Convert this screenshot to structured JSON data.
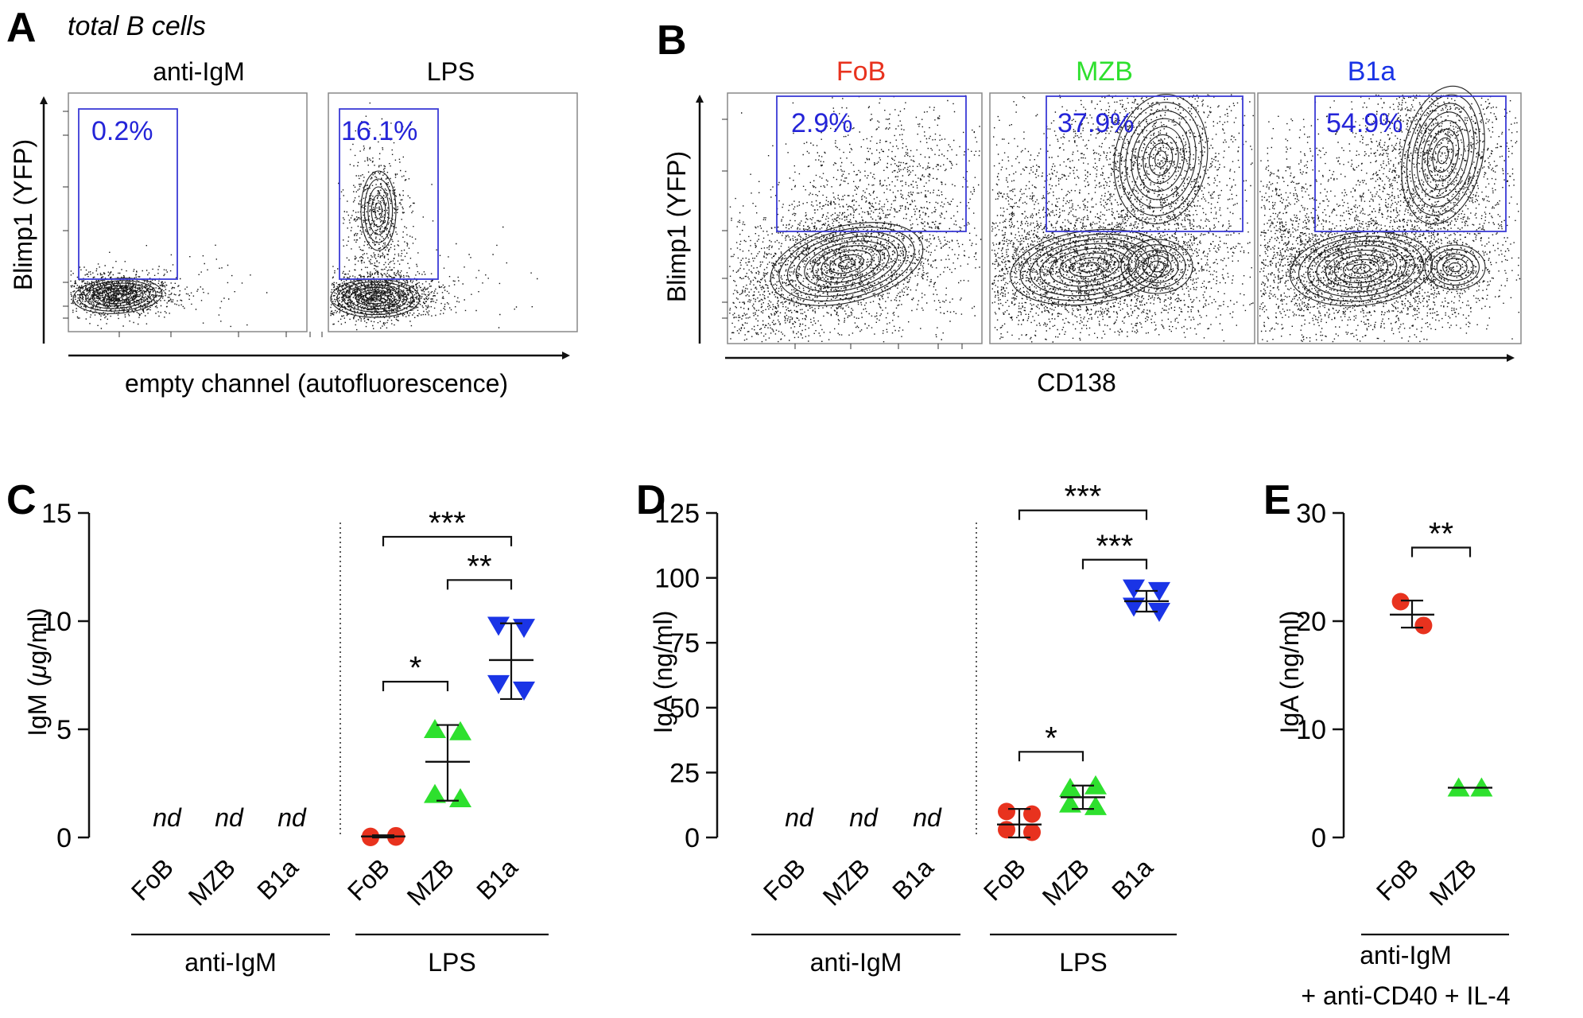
{
  "colors": {
    "fob": "#e8321e",
    "mzb": "#2ee02e",
    "b1a": "#1a34e6",
    "gate": "#3b3bd6",
    "gate_text": "#2424d8",
    "axis": "#111111"
  },
  "panel_a": {
    "letter": "A",
    "subtitle": "total B cells",
    "plots": [
      {
        "title": "anti-IgM",
        "gate_label": "0.2%"
      },
      {
        "title": "LPS",
        "gate_label": "16.1%"
      }
    ],
    "y_label": "Blimp1 (YFP)",
    "x_label": "empty channel (autofluorescence)"
  },
  "panel_b": {
    "letter": "B",
    "plots": [
      {
        "title": "FoB",
        "gate_label": "2.9%",
        "color": "#e8321e"
      },
      {
        "title": "MZB",
        "gate_label": "37.9%",
        "color": "#2ee02e"
      },
      {
        "title": "B1a",
        "gate_label": "54.9%",
        "color": "#1a34e6"
      }
    ],
    "y_label": "Blimp1 (YFP)",
    "x_label": "CD138"
  },
  "chart_data": [
    {
      "panel": "C",
      "type": "scatter",
      "ylabel_prefix": "IgM (",
      "ylabel_mu": "μ",
      "ylabel_suffix": "g/ml)",
      "ylim": [
        0,
        15
      ],
      "yticks": [
        0,
        5,
        10,
        15
      ],
      "categories": [
        "FoB",
        "MZB",
        "B1a",
        "FoB",
        "MZB",
        "B1a"
      ],
      "groups": [
        "anti-IgM",
        "LPS"
      ],
      "nd_label": "nd",
      "series": [
        {
          "name": "FoB anti-IgM",
          "group": "anti-IgM",
          "nd": true,
          "values": []
        },
        {
          "name": "MZB anti-IgM",
          "group": "anti-IgM",
          "nd": true,
          "values": []
        },
        {
          "name": "B1a anti-IgM",
          "group": "anti-IgM",
          "nd": true,
          "values": []
        },
        {
          "name": "FoB LPS",
          "group": "LPS",
          "marker": "circle",
          "values": [
            0.05,
            0.02,
            0.0,
            0.08
          ],
          "mean": 0.05,
          "sd_low": 0.0,
          "sd_high": 0.1
        },
        {
          "name": "MZB LPS",
          "group": "LPS",
          "marker": "triangle-up",
          "values": [
            5.0,
            4.9,
            2.0,
            1.8
          ],
          "mean": 3.5,
          "sd_low": 1.7,
          "sd_high": 5.2
        },
        {
          "name": "B1a LPS",
          "group": "LPS",
          "marker": "triangle-down",
          "values": [
            9.8,
            9.7,
            7.1,
            6.8
          ],
          "mean": 8.2,
          "sd_low": 6.4,
          "sd_high": 9.9
        }
      ],
      "significance": [
        {
          "from": 3,
          "to": 4,
          "label": "*",
          "y": 7.2
        },
        {
          "from": 4,
          "to": 5,
          "label": "**",
          "y": 11.9
        },
        {
          "from": 3,
          "to": 5,
          "label": "***",
          "y": 13.9
        }
      ]
    },
    {
      "panel": "D",
      "type": "scatter",
      "ylabel": "IgA (ng/ml)",
      "ylim": [
        0,
        125
      ],
      "yticks": [
        0,
        25,
        50,
        75,
        100,
        125
      ],
      "categories": [
        "FoB",
        "MZB",
        "B1a",
        "FoB",
        "MZB",
        "B1a"
      ],
      "groups": [
        "anti-IgM",
        "LPS"
      ],
      "nd_label": "nd",
      "series": [
        {
          "name": "FoB anti-IgM",
          "group": "anti-IgM",
          "nd": true,
          "values": []
        },
        {
          "name": "MZB anti-IgM",
          "group": "anti-IgM",
          "nd": true,
          "values": []
        },
        {
          "name": "B1a anti-IgM",
          "group": "anti-IgM",
          "nd": true,
          "values": []
        },
        {
          "name": "FoB LPS",
          "group": "LPS",
          "marker": "circle",
          "values": [
            10,
            9,
            3,
            2
          ],
          "mean": 5,
          "sd_low": 0,
          "sd_high": 11
        },
        {
          "name": "MZB LPS",
          "group": "LPS",
          "marker": "triangle-up",
          "values": [
            19,
            20,
            13,
            12
          ],
          "mean": 15.5,
          "sd_low": 11,
          "sd_high": 20
        },
        {
          "name": "B1a LPS",
          "group": "LPS",
          "marker": "triangle-down",
          "values": [
            96,
            95,
            89,
            87
          ],
          "mean": 91,
          "sd_low": 87,
          "sd_high": 95
        }
      ],
      "significance": [
        {
          "from": 3,
          "to": 4,
          "label": "*",
          "y": 33
        },
        {
          "from": 4,
          "to": 5,
          "label": "***",
          "y": 107
        },
        {
          "from": 3,
          "to": 5,
          "label": "***",
          "y": 126
        }
      ]
    },
    {
      "panel": "E",
      "type": "scatter",
      "ylabel": "IgA (ng/ml)",
      "ylim": [
        0,
        30
      ],
      "yticks": [
        0,
        10,
        20,
        30
      ],
      "categories": [
        "FoB",
        "MZB"
      ],
      "groups": [
        "anti-IgM",
        "+ anti-CD40 + IL-4"
      ],
      "series": [
        {
          "name": "FoB",
          "marker": "circle",
          "values": [
            21.8,
            19.6
          ],
          "mean": 20.6,
          "sd_low": 19.4,
          "sd_high": 21.9
        },
        {
          "name": "MZB",
          "marker": "triangle-up",
          "values": [
            4.6,
            4.6
          ],
          "mean": 4.6,
          "sd_low": 4.6,
          "sd_high": 4.6
        }
      ],
      "significance": [
        {
          "from": 0,
          "to": 1,
          "label": "**",
          "y": 26.8
        }
      ]
    }
  ]
}
